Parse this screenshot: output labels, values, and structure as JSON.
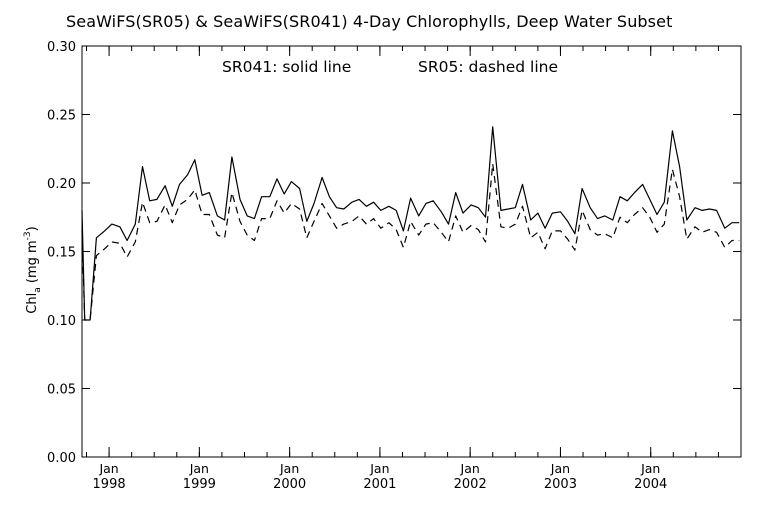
{
  "chart_data": {
    "type": "line",
    "title": "SeaWiFS(SR05) & SeaWiFS(SR041) 4-Day Chlorophylls, Deep Water Subset",
    "annotations": {
      "sr041": "SR041: solid line",
      "sr05": "SR05: dashed line"
    },
    "ylabel": {
      "base": "Chl",
      "sub": "a",
      "unit_prefix": " (mg m",
      "unit_sup": "-3",
      "unit_suffix": ")"
    },
    "ylim": [
      0.0,
      0.3
    ],
    "yticks": [
      0.0,
      0.05,
      0.1,
      0.15,
      0.2,
      0.25,
      0.3
    ],
    "ytick_labels": [
      "0.00",
      "0.05",
      "0.10",
      "0.15",
      "0.20",
      "0.25",
      "0.30"
    ],
    "xlim": [
      1997.7,
      2005.0
    ],
    "xticks": [
      {
        "x": 1998.0,
        "month": "Jan",
        "year": "1998"
      },
      {
        "x": 1999.0,
        "month": "Jan",
        "year": "1999"
      },
      {
        "x": 2000.0,
        "month": "Jan",
        "year": "2000"
      },
      {
        "x": 2001.0,
        "month": "Jan",
        "year": "2001"
      },
      {
        "x": 2002.0,
        "month": "Jan",
        "year": "2002"
      },
      {
        "x": 2003.0,
        "month": "Jan",
        "year": "2003"
      },
      {
        "x": 2004.0,
        "month": "Jan",
        "year": "2004"
      }
    ],
    "minor_ticks_per_year": 4,
    "grid": false,
    "series": [
      {
        "name": "SR041",
        "style": "solid",
        "color": "#000000",
        "x": [
          1997.7,
          1997.73,
          1997.79,
          1997.86,
          1997.95,
          1998.03,
          1998.12,
          1998.2,
          1998.29,
          1998.37,
          1998.45,
          1998.53,
          1998.62,
          1998.7,
          1998.78,
          1998.87,
          1998.95,
          1999.03,
          1999.11,
          1999.2,
          1999.28,
          1999.36,
          1999.45,
          1999.53,
          1999.61,
          1999.69,
          1999.78,
          1999.86,
          1999.94,
          2000.02,
          2000.11,
          2000.19,
          2000.27,
          2000.36,
          2000.44,
          2000.52,
          2000.6,
          2000.69,
          2000.77,
          2000.85,
          2000.93,
          2001.01,
          2001.1,
          2001.18,
          2001.26,
          2001.34,
          2001.43,
          2001.51,
          2001.59,
          2001.68,
          2001.76,
          2001.84,
          2001.92,
          2002.01,
          2002.09,
          2002.17,
          2002.25,
          2002.34,
          2002.42,
          2002.5,
          2002.58,
          2002.67,
          2002.75,
          2002.83,
          2002.91,
          2003.0,
          2003.08,
          2003.16,
          2003.24,
          2003.33,
          2003.41,
          2003.49,
          2003.58,
          2003.66,
          2003.74,
          2003.82,
          2003.91,
          2003.99,
          2004.07,
          2004.15,
          2004.24,
          2004.32,
          2004.4,
          2004.49,
          2004.57,
          2004.65,
          2004.73,
          2004.82,
          2004.9,
          2004.98
        ],
        "values": [
          0.18,
          0.1,
          0.1,
          0.16,
          0.165,
          0.17,
          0.168,
          0.158,
          0.17,
          0.212,
          0.187,
          0.188,
          0.198,
          0.183,
          0.199,
          0.206,
          0.217,
          0.191,
          0.193,
          0.176,
          0.173,
          0.219,
          0.188,
          0.176,
          0.174,
          0.19,
          0.19,
          0.203,
          0.192,
          0.201,
          0.196,
          0.172,
          0.185,
          0.204,
          0.19,
          0.182,
          0.181,
          0.186,
          0.188,
          0.183,
          0.186,
          0.18,
          0.183,
          0.18,
          0.165,
          0.189,
          0.176,
          0.185,
          0.187,
          0.179,
          0.17,
          0.193,
          0.178,
          0.184,
          0.182,
          0.175,
          0.241,
          0.18,
          0.181,
          0.182,
          0.199,
          0.173,
          0.178,
          0.167,
          0.178,
          0.179,
          0.172,
          0.163,
          0.196,
          0.182,
          0.174,
          0.176,
          0.173,
          0.19,
          0.187,
          0.193,
          0.199,
          0.188,
          0.177,
          0.186,
          0.238,
          0.212,
          0.173,
          0.182,
          0.18,
          0.181,
          0.18,
          0.167,
          0.171,
          0.171
        ]
      },
      {
        "name": "SR05",
        "style": "dashed",
        "color": "#000000",
        "x": [
          1997.7,
          1997.73,
          1997.79,
          1997.86,
          1997.95,
          1998.03,
          1998.12,
          1998.2,
          1998.29,
          1998.37,
          1998.45,
          1998.53,
          1998.62,
          1998.7,
          1998.78,
          1998.87,
          1998.95,
          1999.03,
          1999.11,
          1999.2,
          1999.28,
          1999.36,
          1999.45,
          1999.53,
          1999.61,
          1999.69,
          1999.78,
          1999.86,
          1999.94,
          2000.02,
          2000.11,
          2000.19,
          2000.27,
          2000.36,
          2000.44,
          2000.52,
          2000.6,
          2000.69,
          2000.77,
          2000.85,
          2000.93,
          2001.01,
          2001.1,
          2001.18,
          2001.26,
          2001.34,
          2001.43,
          2001.51,
          2001.59,
          2001.68,
          2001.76,
          2001.84,
          2001.92,
          2002.01,
          2002.09,
          2002.17,
          2002.25,
          2002.34,
          2002.42,
          2002.5,
          2002.58,
          2002.67,
          2002.75,
          2002.83,
          2002.91,
          2003.0,
          2003.08,
          2003.16,
          2003.24,
          2003.33,
          2003.41,
          2003.49,
          2003.58,
          2003.66,
          2003.74,
          2003.82,
          2003.91,
          2003.99,
          2004.07,
          2004.15,
          2004.24,
          2004.32,
          2004.4,
          2004.49,
          2004.57,
          2004.65,
          2004.73,
          2004.82,
          2004.9,
          2004.98
        ],
        "values": [
          0.165,
          0.1,
          0.1,
          0.147,
          0.152,
          0.157,
          0.156,
          0.146,
          0.157,
          0.186,
          0.171,
          0.172,
          0.184,
          0.171,
          0.184,
          0.188,
          0.195,
          0.177,
          0.177,
          0.162,
          0.16,
          0.193,
          0.172,
          0.162,
          0.158,
          0.174,
          0.174,
          0.187,
          0.178,
          0.185,
          0.181,
          0.16,
          0.172,
          0.185,
          0.176,
          0.167,
          0.17,
          0.172,
          0.176,
          0.17,
          0.174,
          0.167,
          0.171,
          0.166,
          0.153,
          0.172,
          0.162,
          0.17,
          0.171,
          0.164,
          0.157,
          0.176,
          0.164,
          0.169,
          0.166,
          0.157,
          0.214,
          0.168,
          0.167,
          0.17,
          0.183,
          0.16,
          0.164,
          0.152,
          0.165,
          0.165,
          0.159,
          0.151,
          0.18,
          0.166,
          0.162,
          0.163,
          0.16,
          0.175,
          0.171,
          0.177,
          0.182,
          0.175,
          0.164,
          0.17,
          0.21,
          0.19,
          0.159,
          0.168,
          0.164,
          0.166,
          0.164,
          0.153,
          0.158,
          0.158
        ]
      }
    ]
  }
}
